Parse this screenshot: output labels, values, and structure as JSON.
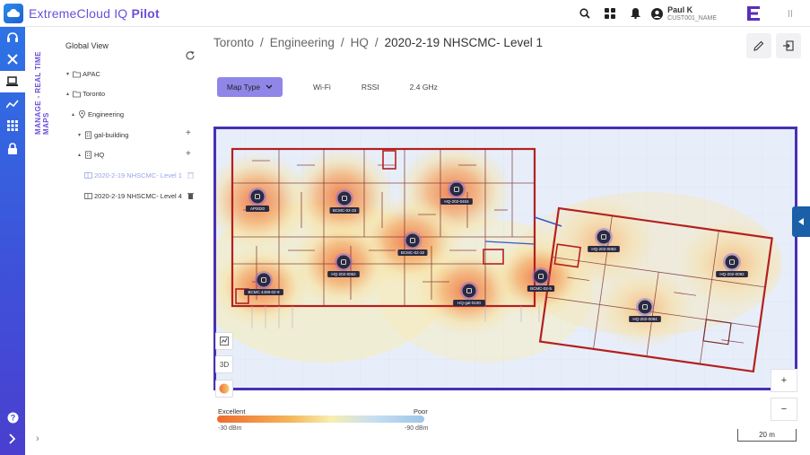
{
  "app": {
    "title_prefix": "ExtremeCloud IQ",
    "title_suffix": "Pilot"
  },
  "user": {
    "name": "Paul K",
    "org": "CUST001_NAME"
  },
  "side_label": "MANAGE - REAL TIME MAPS",
  "tree": {
    "title": "Global View",
    "items": [
      {
        "label": "APAC",
        "type": "folder",
        "expanded": false
      },
      {
        "label": "Toronto",
        "type": "folder",
        "expanded": true
      },
      {
        "label": "Engineering",
        "type": "location",
        "expanded": true
      },
      {
        "label": "gal-building",
        "type": "building",
        "expanded": false
      },
      {
        "label": "HQ",
        "type": "building",
        "expanded": true
      },
      {
        "label": "2020-2-19 NHSCMC- Level 1",
        "type": "floor",
        "selected": true
      },
      {
        "label": "2020-2-19 NHSCMC- Level 4",
        "type": "floor",
        "selected": false
      }
    ]
  },
  "breadcrumb": [
    "Toronto",
    "Engineering",
    "HQ",
    "2020-2-19 NHSCMC- Level 1"
  ],
  "toolbar": {
    "map_type_label": "Map Type",
    "tabs": [
      "Wi-Fi",
      "RSSI",
      "2.4 GHz"
    ]
  },
  "map": {
    "tool_3d": "3D",
    "zoom_in": "+",
    "zoom_out": "−",
    "scale": "20 m",
    "access_points": [
      "AP0020",
      "BCMC-02-33",
      "HQ-202-0404",
      "BCMC-02-32",
      "HQ-202-0062",
      "BCMC 4408-02-9",
      "HQ-gal-0100",
      "BCMC-02-5",
      "HQ-202-0083",
      "HQ-202-0084",
      "HQ-202-0092"
    ]
  },
  "legend": {
    "excellent": "Excellent",
    "poor": "Poor",
    "min": "-30 dBm",
    "max": "-90 dBm"
  },
  "colors": {
    "accent": "#6c4fd8",
    "rail_top": "#2d73e6",
    "rail_bottom": "#4a3fcf",
    "map_border": "#4a2fb3",
    "wall_red": "#b32020"
  }
}
